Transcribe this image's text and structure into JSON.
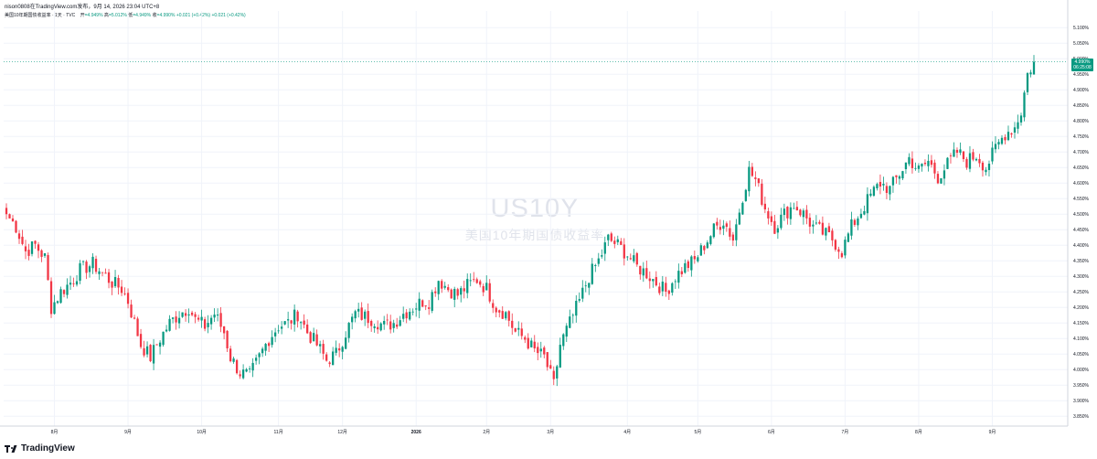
{
  "header": {
    "line1": "nison0808在TradingView.com发布，9月 14, 2026 23:04 UTC+8",
    "symbol": "美国10年期国债收益率 · 1天 · TVC",
    "open_label": "开",
    "open": "=4.949%",
    "high_label": "高",
    "high": "=5.012%",
    "low_label": "低",
    "low": "=4.949%",
    "close_label": "收",
    "close": "=4.990%",
    "change": "+0.021 (+0.42%)",
    "change2": "+0.021 (+0.42%)"
  },
  "watermark": {
    "ticker": "US10Y",
    "name": "美国10年期国债收益率"
  },
  "price_tag": {
    "value": "4.990%",
    "time": "06:25:08"
  },
  "brand": {
    "name": "TradingView"
  },
  "colors": {
    "up": "#089981",
    "down": "#f23645",
    "grid": "#f0f3fa",
    "axis_text": "#131722"
  },
  "chart_data": {
    "type": "candlestick",
    "title": "",
    "xlabel": "",
    "ylabel": "",
    "ylim": [
      3.83,
      5.13
    ],
    "y_ticks": [
      "5.100%",
      "5.050%",
      "5.000%",
      "4.950%",
      "4.900%",
      "4.850%",
      "4.800%",
      "4.750%",
      "4.700%",
      "4.650%",
      "4.600%",
      "4.550%",
      "4.500%",
      "4.450%",
      "4.400%",
      "4.350%",
      "4.300%",
      "4.250%",
      "4.200%",
      "4.150%",
      "4.100%",
      "4.050%",
      "4.000%",
      "3.950%",
      "3.900%",
      "3.850%"
    ],
    "x_ticks": [
      {
        "label": "8月",
        "index": 15
      },
      {
        "label": "9月",
        "index": 38
      },
      {
        "label": "10月",
        "index": 61
      },
      {
        "label": "11月",
        "index": 85
      },
      {
        "label": "12月",
        "index": 105
      },
      {
        "label": "2026",
        "index": 128
      },
      {
        "label": "2月",
        "index": 150
      },
      {
        "label": "3月",
        "index": 170
      },
      {
        "label": "4月",
        "index": 194
      },
      {
        "label": "5月",
        "index": 216
      },
      {
        "label": "6月",
        "index": 239
      },
      {
        "label": "7月",
        "index": 262
      },
      {
        "label": "8月",
        "index": 285
      },
      {
        "label": "9月",
        "index": 308
      }
    ],
    "anchors": [
      [
        0,
        4.5
      ],
      [
        3,
        4.46
      ],
      [
        6,
        4.38
      ],
      [
        9,
        4.4
      ],
      [
        12,
        4.36
      ],
      [
        14,
        4.2
      ],
      [
        17,
        4.25
      ],
      [
        20,
        4.28
      ],
      [
        23,
        4.32
      ],
      [
        27,
        4.34
      ],
      [
        30,
        4.31
      ],
      [
        33,
        4.28
      ],
      [
        36,
        4.26
      ],
      [
        38,
        4.22
      ],
      [
        40,
        4.15
      ],
      [
        42,
        4.08
      ],
      [
        45,
        4.04
      ],
      [
        48,
        4.1
      ],
      [
        51,
        4.15
      ],
      [
        54,
        4.18
      ],
      [
        57,
        4.2
      ],
      [
        59,
        4.16
      ],
      [
        62,
        4.14
      ],
      [
        65,
        4.18
      ],
      [
        68,
        4.12
      ],
      [
        70,
        4.04
      ],
      [
        73,
        3.99
      ],
      [
        76,
        3.98
      ],
      [
        79,
        4.04
      ],
      [
        82,
        4.1
      ],
      [
        85,
        4.14
      ],
      [
        88,
        4.15
      ],
      [
        91,
        4.18
      ],
      [
        94,
        4.12
      ],
      [
        97,
        4.08
      ],
      [
        100,
        4.03
      ],
      [
        103,
        4.05
      ],
      [
        106,
        4.12
      ],
      [
        109,
        4.18
      ],
      [
        112,
        4.17
      ],
      [
        115,
        4.16
      ],
      [
        118,
        4.14
      ],
      [
        121,
        4.15
      ],
      [
        124,
        4.18
      ],
      [
        127,
        4.2
      ],
      [
        130,
        4.22
      ],
      [
        132,
        4.22
      ],
      [
        135,
        4.29
      ],
      [
        138,
        4.26
      ],
      [
        141,
        4.24
      ],
      [
        144,
        4.27
      ],
      [
        147,
        4.29
      ],
      [
        150,
        4.26
      ],
      [
        153,
        4.2
      ],
      [
        156,
        4.18
      ],
      [
        159,
        4.12
      ],
      [
        162,
        4.1
      ],
      [
        165,
        4.06
      ],
      [
        168,
        4.04
      ],
      [
        170,
        3.98
      ],
      [
        171,
        3.95
      ],
      [
        173,
        4.08
      ],
      [
        176,
        4.15
      ],
      [
        179,
        4.22
      ],
      [
        182,
        4.3
      ],
      [
        185,
        4.35
      ],
      [
        188,
        4.42
      ],
      [
        191,
        4.4
      ],
      [
        194,
        4.37
      ],
      [
        197,
        4.33
      ],
      [
        200,
        4.31
      ],
      [
        203,
        4.28
      ],
      [
        206,
        4.25
      ],
      [
        209,
        4.3
      ],
      [
        212,
        4.33
      ],
      [
        215,
        4.35
      ],
      [
        218,
        4.4
      ],
      [
        221,
        4.45
      ],
      [
        224,
        4.48
      ],
      [
        227,
        4.42
      ],
      [
        230,
        4.56
      ],
      [
        232,
        4.64
      ],
      [
        234,
        4.61
      ],
      [
        237,
        4.52
      ],
      [
        240,
        4.46
      ],
      [
        243,
        4.5
      ],
      [
        246,
        4.53
      ],
      [
        249,
        4.5
      ],
      [
        252,
        4.46
      ],
      [
        255,
        4.44
      ],
      [
        258,
        4.42
      ],
      [
        261,
        4.38
      ],
      [
        264,
        4.46
      ],
      [
        267,
        4.51
      ],
      [
        270,
        4.56
      ],
      [
        273,
        4.6
      ],
      [
        276,
        4.58
      ],
      [
        279,
        4.63
      ],
      [
        282,
        4.68
      ],
      [
        285,
        4.64
      ],
      [
        288,
        4.67
      ],
      [
        291,
        4.62
      ],
      [
        294,
        4.66
      ],
      [
        297,
        4.7
      ],
      [
        300,
        4.67
      ],
      [
        303,
        4.69
      ],
      [
        306,
        4.65
      ],
      [
        309,
        4.71
      ],
      [
        312,
        4.76
      ],
      [
        315,
        4.78
      ],
      [
        317,
        4.83
      ],
      [
        319,
        4.95
      ],
      [
        321,
        4.99
      ]
    ],
    "last": {
      "open": 4.949,
      "high": 5.012,
      "low": 4.949,
      "close": 4.99
    }
  }
}
